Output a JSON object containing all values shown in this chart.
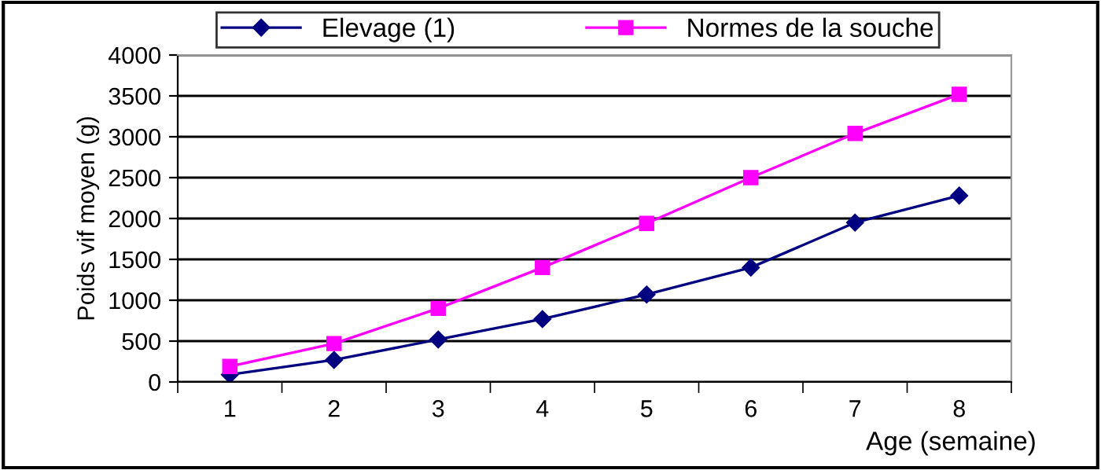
{
  "chart_data": {
    "type": "line",
    "xlabel": "Age (semaine)",
    "ylabel": "Poids vif moyen (g)",
    "categories": [
      "1",
      "2",
      "3",
      "4",
      "5",
      "6",
      "7",
      "8"
    ],
    "series": [
      {
        "name": "Elevage (1)",
        "color": "#000080",
        "marker": "diamond",
        "values": [
          90,
          270,
          520,
          770,
          1070,
          1400,
          1950,
          2280
        ]
      },
      {
        "name": "Normes de la souche",
        "color": "#ff00ff",
        "marker": "square",
        "values": [
          190,
          470,
          900,
          1400,
          1940,
          2500,
          3040,
          3520
        ]
      }
    ],
    "ylim": [
      0,
      4000
    ],
    "yticks": [
      0,
      500,
      1000,
      1500,
      2000,
      2500,
      3000,
      3500,
      4000
    ],
    "grid": "y",
    "legend": "top"
  }
}
